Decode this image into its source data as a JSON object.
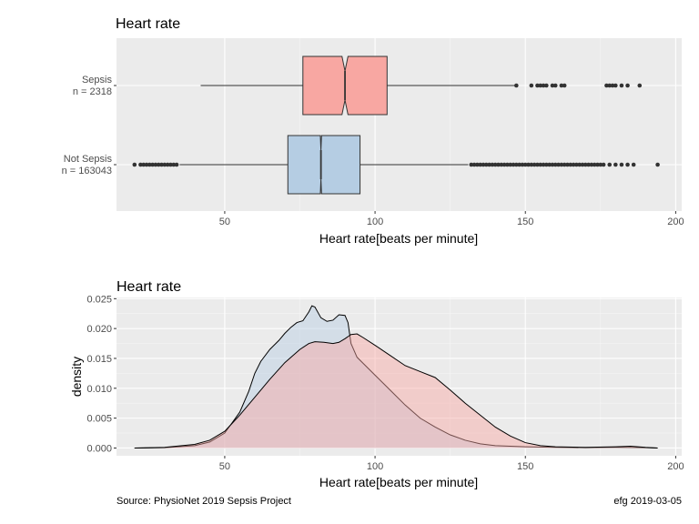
{
  "chart_data": [
    {
      "type": "boxplot",
      "title": "Heart rate",
      "xlabel": "Heart rate[beats per minute]",
      "ylabel": "",
      "xlim": [
        14,
        202
      ],
      "xticks": [
        50,
        100,
        150,
        200
      ],
      "grid": true,
      "notched": true,
      "groups": [
        {
          "name": "Sepsis",
          "count_label": "n = 2318",
          "color": "#F8A7A2",
          "whisker_low": 42,
          "q1": 76,
          "median": 90,
          "q3": 104,
          "whisker_high": 147,
          "notch_low": 89,
          "notch_high": 91,
          "outliers": [
            147,
            152,
            154,
            155,
            156,
            157,
            159,
            160,
            162,
            163,
            177,
            178,
            179,
            180,
            182,
            184,
            188
          ]
        },
        {
          "name": "Not Sepsis",
          "count_label": "n = 163043",
          "color": "#B5CDE3",
          "whisker_low": 35,
          "q1": 71,
          "median": 82,
          "q3": 95,
          "whisker_high": 131,
          "notch_low": 81.8,
          "notch_high": 82.2,
          "outliers": [
            20,
            22,
            23,
            24,
            25,
            26,
            27,
            28,
            29,
            30,
            31,
            32,
            33,
            34,
            132,
            133,
            134,
            135,
            136,
            137,
            138,
            139,
            140,
            141,
            142,
            143,
            144,
            145,
            146,
            147,
            148,
            149,
            150,
            151,
            152,
            153,
            154,
            155,
            156,
            157,
            158,
            159,
            160,
            161,
            162,
            163,
            164,
            165,
            166,
            167,
            168,
            169,
            170,
            171,
            172,
            173,
            174,
            175,
            176,
            178,
            180,
            182,
            184,
            186,
            194
          ]
        }
      ]
    },
    {
      "type": "density",
      "title": "Heart rate",
      "xlabel": "Heart rate[beats per minute]",
      "ylabel": "density",
      "xlim": [
        14,
        202
      ],
      "ylim": [
        -0.0013,
        0.0252
      ],
      "xticks": [
        50,
        100,
        150,
        200
      ],
      "yticks": [
        "0.000",
        "0.005",
        "0.010",
        "0.015",
        "0.020",
        "0.025"
      ],
      "grid": true,
      "series": [
        {
          "color": "#B5CDE3",
          "x": [
            20,
            30,
            40,
            45,
            50,
            55,
            58,
            60,
            62,
            65,
            68,
            70,
            72,
            74,
            76,
            78,
            79,
            80,
            82,
            84,
            86,
            88,
            90,
            91,
            92,
            94,
            96,
            100,
            105,
            110,
            115,
            120,
            125,
            130,
            135,
            140,
            150,
            160,
            170,
            180,
            190,
            194
          ],
          "y": [
            0.0,
            5e-05,
            0.0004,
            0.001,
            0.0025,
            0.006,
            0.0095,
            0.0125,
            0.0145,
            0.0165,
            0.018,
            0.0192,
            0.0202,
            0.021,
            0.0213,
            0.0228,
            0.0238,
            0.0236,
            0.0218,
            0.0212,
            0.0214,
            0.0223,
            0.0222,
            0.021,
            0.0175,
            0.0152,
            0.0142,
            0.0122,
            0.0097,
            0.0072,
            0.005,
            0.0035,
            0.0022,
            0.0013,
            0.0007,
            0.0004,
            0.0002,
            0.0001,
            5e-05,
            0.0001,
            5e-05,
            0.0
          ]
        },
        {
          "color": "#F8A7A2",
          "x": [
            20,
            30,
            40,
            45,
            50,
            55,
            60,
            65,
            70,
            75,
            78,
            80,
            83,
            86,
            88,
            90,
            92,
            94,
            96,
            100,
            105,
            110,
            115,
            120,
            125,
            130,
            135,
            140,
            145,
            150,
            155,
            160,
            170,
            180,
            185,
            190,
            194
          ],
          "y": [
            0.0,
            0.0001,
            0.0006,
            0.0013,
            0.0028,
            0.0055,
            0.0085,
            0.0115,
            0.0143,
            0.0165,
            0.0175,
            0.0178,
            0.0177,
            0.0175,
            0.0177,
            0.0183,
            0.019,
            0.0191,
            0.0185,
            0.0172,
            0.0155,
            0.0138,
            0.0128,
            0.0118,
            0.0097,
            0.0075,
            0.0055,
            0.0035,
            0.002,
            0.0009,
            0.0004,
            0.0002,
            0.0001,
            0.0002,
            0.0003,
            0.0001,
            0.0
          ]
        }
      ]
    }
  ],
  "footer": {
    "source": "Source:  PhysioNet 2019 Sepsis Project",
    "credit": "efg 2019-03-05"
  }
}
